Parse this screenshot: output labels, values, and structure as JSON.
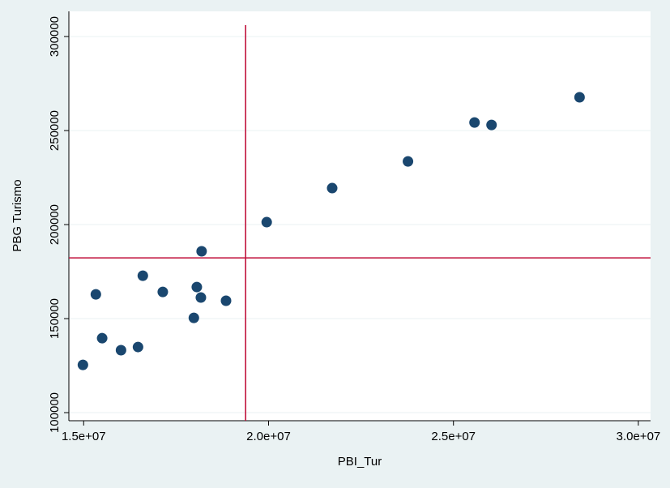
{
  "chart_data": {
    "type": "scatter",
    "x_label": "PBI_Tur",
    "y_label": "PBG Turismo",
    "x": [
      14980000,
      15330000,
      15500000,
      16010000,
      16470000,
      16600000,
      17140000,
      17980000,
      18060000,
      18190000,
      18170000,
      18850000,
      19950000,
      21720000,
      23770000,
      25570000,
      26030000,
      28410000
    ],
    "series": [
      {
        "color": "#1a476f",
        "values": [
          125400,
          162900,
          139600,
          133200,
          134900,
          172800,
          164200,
          150400,
          166800,
          185800,
          161200,
          159500,
          201300,
          219400,
          233600,
          254300,
          253000,
          267700
        ]
      }
    ],
    "xlim": [
      14600000,
      30330000
    ],
    "ylim": [
      95700,
      313400
    ],
    "xticks": [
      {
        "value": 15000000,
        "label": "1.5e+07"
      },
      {
        "value": 20000000,
        "label": "2.0e+07"
      },
      {
        "value": 25000000,
        "label": "2.5e+07"
      },
      {
        "value": 30000000,
        "label": "3.0e+07"
      }
    ],
    "yticks": [
      100000,
      150000,
      200000,
      250000,
      300000
    ],
    "grid": true,
    "xline": 19380000,
    "yline": 182300,
    "refline_color": "#c1123c"
  }
}
